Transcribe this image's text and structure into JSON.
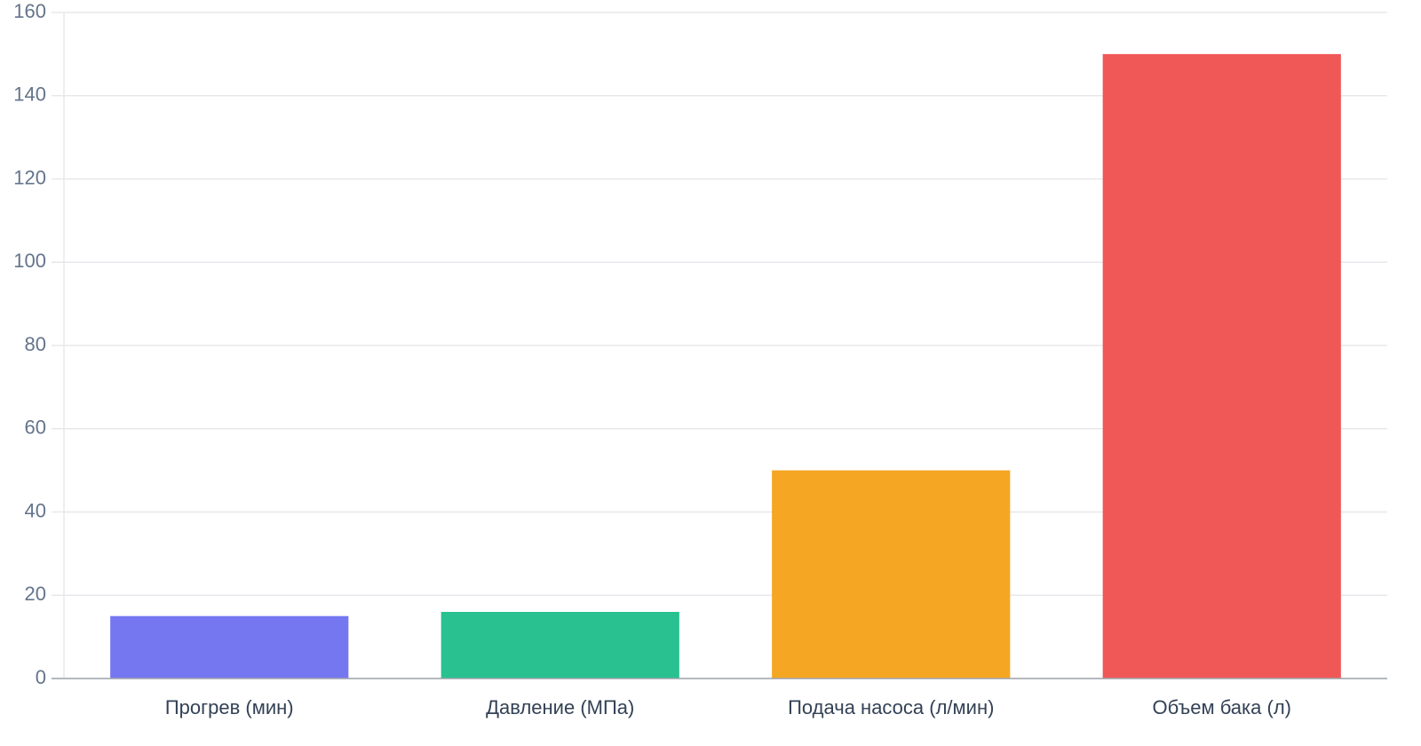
{
  "chart_data": {
    "type": "bar",
    "categories": [
      "Прогрев (мин)",
      "Давление (МПа)",
      "Подача насоса (л/мин)",
      "Объем бака (л)"
    ],
    "values": [
      15,
      16,
      50,
      150
    ],
    "colors": [
      "#7577f1",
      "#28c18f",
      "#f5a623",
      "#f05858"
    ],
    "ylim": [
      0,
      160
    ],
    "yticks": [
      0,
      20,
      40,
      60,
      80,
      100,
      120,
      140,
      160
    ],
    "grid": true
  }
}
